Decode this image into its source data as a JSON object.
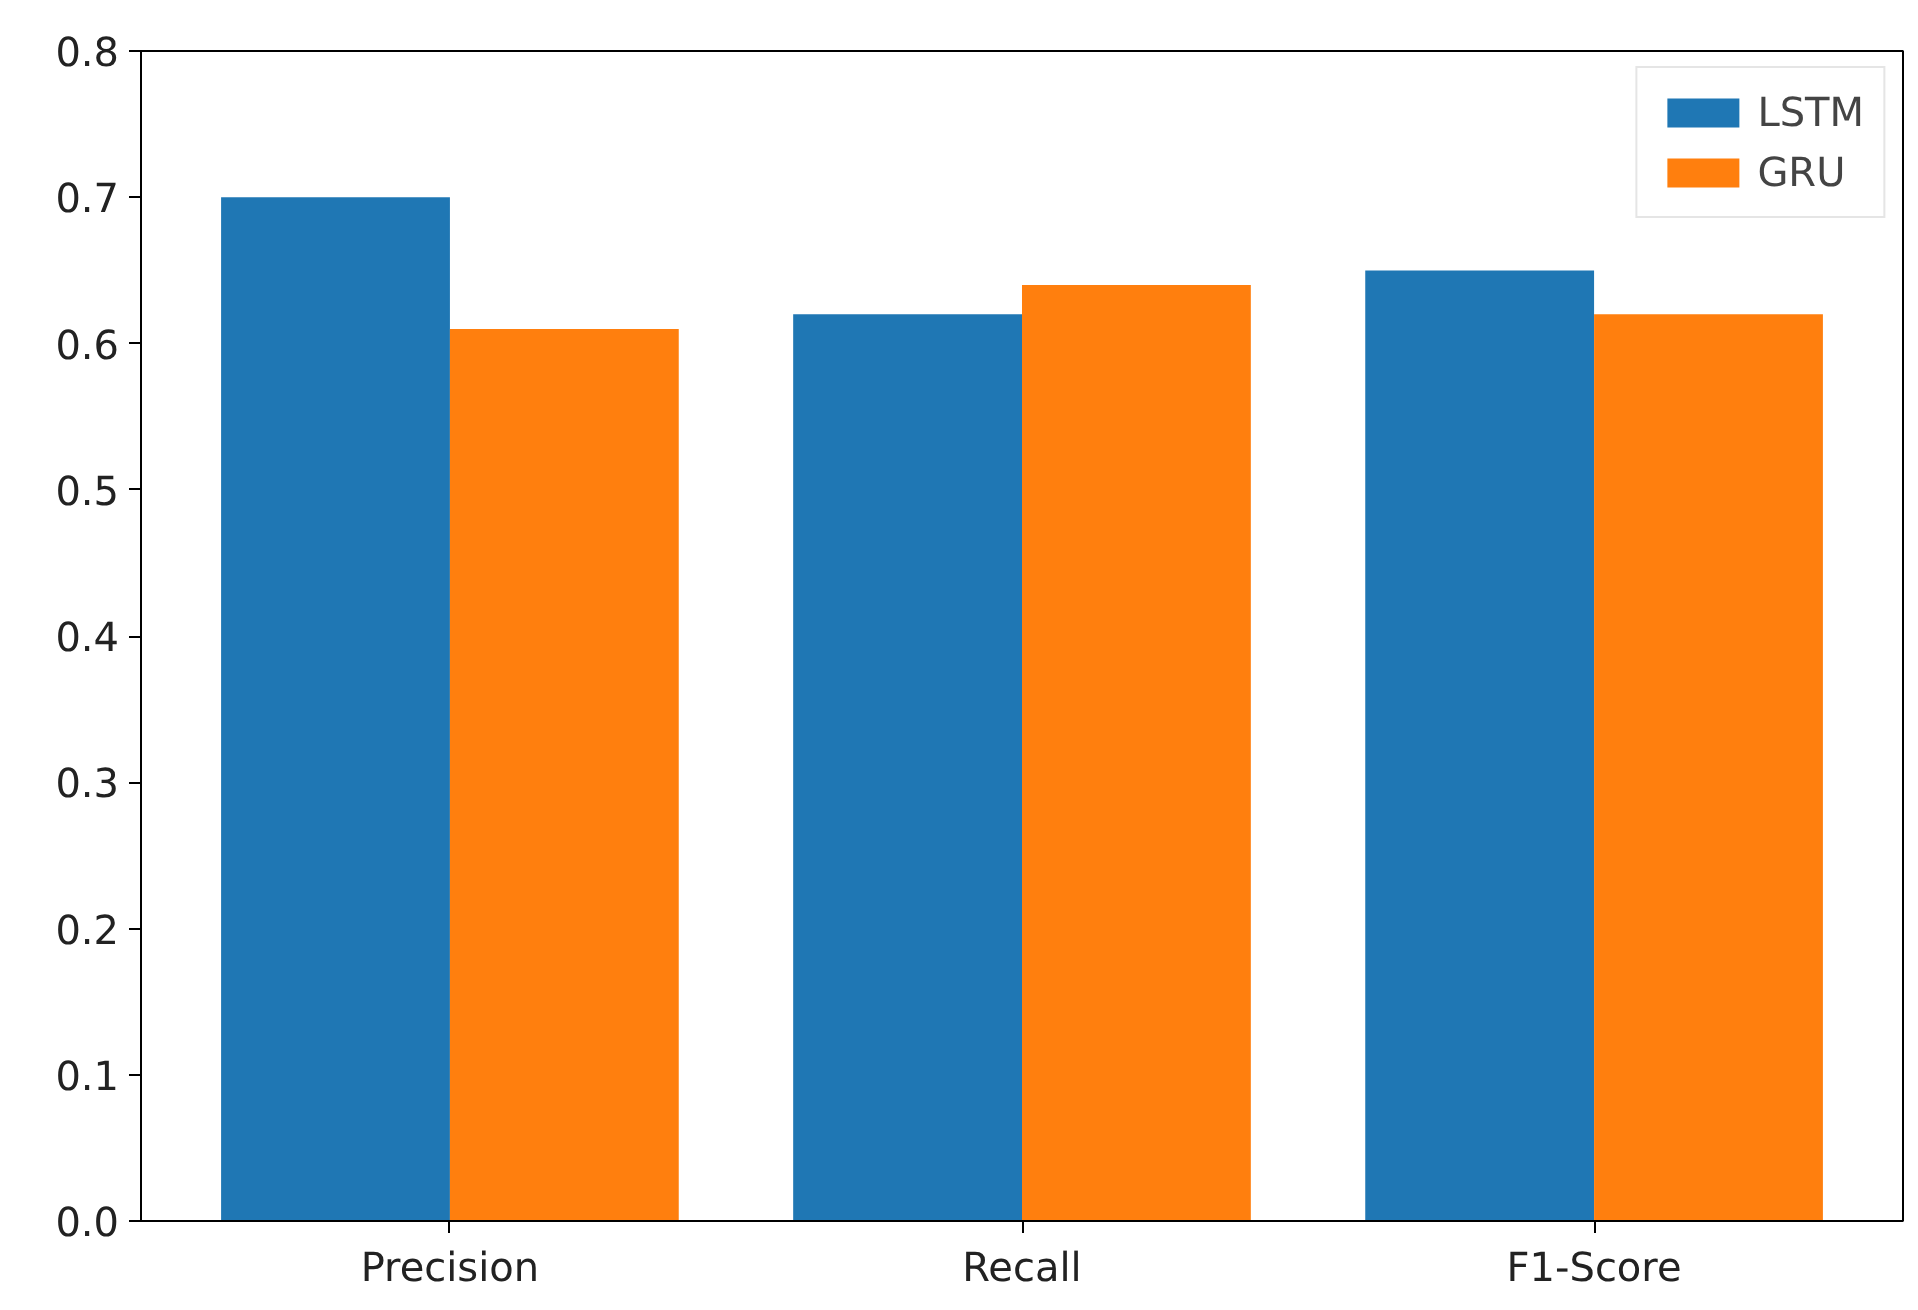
{
  "chart_data": {
    "type": "bar",
    "categories": [
      "Precision",
      "Recall",
      "F1-Score"
    ],
    "series": [
      {
        "name": "LSTM",
        "color": "#1f77b4",
        "values": [
          0.7,
          0.62,
          0.65
        ]
      },
      {
        "name": "GRU",
        "color": "#ff7f0e",
        "values": [
          0.61,
          0.64,
          0.62
        ]
      }
    ],
    "ylim": [
      0,
      0.8
    ],
    "yticks": [
      {
        "value": 0,
        "label": "0.0"
      },
      {
        "value": 0.1,
        "label": "0.1"
      },
      {
        "value": 0.2,
        "label": "0.2"
      },
      {
        "value": 0.3,
        "label": "0.3"
      },
      {
        "value": 0.4,
        "label": "0.4"
      },
      {
        "value": 0.5,
        "label": "0.5"
      },
      {
        "value": 0.6,
        "label": "0.6"
      },
      {
        "value": 0.7,
        "label": "0.7"
      },
      {
        "value": 0.8,
        "label": "0.8"
      }
    ],
    "grid": false,
    "legend": "top right"
  }
}
